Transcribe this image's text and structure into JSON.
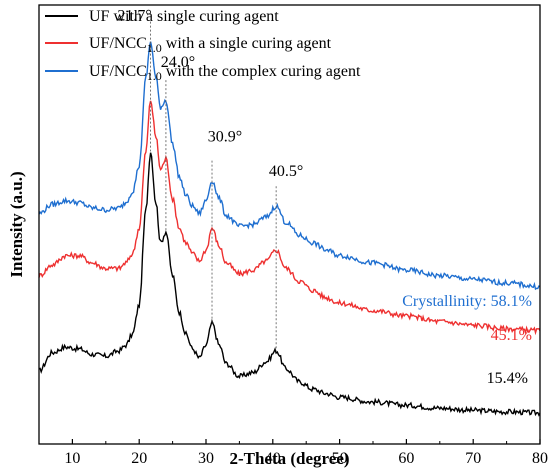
{
  "chart_data": {
    "type": "line",
    "xlabel": "2-Theta (degree)",
    "ylabel": "Intensity (a.u.)",
    "xlim": [
      5,
      80
    ],
    "xticks": [
      10,
      20,
      30,
      40,
      50,
      60,
      70,
      80
    ],
    "grid": false,
    "legend_position": "top-left",
    "series": [
      {
        "name_main": "UF with a single curing agent",
        "name_sub": "",
        "name_rest": "",
        "color": "#000000",
        "crystallinity": "15.4%",
        "x": [
          5,
          7,
          9,
          11,
          13,
          15,
          17,
          18,
          19,
          20,
          21,
          21.7,
          22.5,
          23.2,
          24.0,
          25,
          26,
          27,
          28,
          29,
          30,
          30.9,
          32,
          33,
          35,
          37,
          39,
          40.5,
          42,
          44,
          46,
          48,
          50,
          55,
          60,
          65,
          70,
          75,
          80
        ],
        "y": [
          12,
          17,
          18.5,
          18,
          16.5,
          16,
          17.5,
          19,
          22,
          30,
          56,
          72,
          58,
          47,
          50,
          38,
          28,
          22,
          18,
          15.5,
          19,
          25,
          19,
          14,
          10.5,
          11.5,
          14.5,
          17.5,
          12.5,
          9,
          7,
          5.8,
          4.8,
          3.5,
          2.6,
          1.8,
          1.2,
          0.8,
          0.5
        ]
      },
      {
        "name_main": "UF/NCC",
        "name_sub": "1.0",
        "name_rest": " with a single curing agent",
        "color": "#ee3030",
        "crystallinity": "45.1%",
        "x": [
          5,
          7,
          9,
          11,
          13,
          15,
          17,
          18,
          19,
          20,
          21,
          21.7,
          22.5,
          23.2,
          24.0,
          25,
          26,
          27,
          28,
          29,
          30,
          30.9,
          32,
          33,
          35,
          37,
          39,
          40.5,
          42,
          44,
          46,
          48,
          50,
          55,
          60,
          65,
          70,
          75,
          80
        ],
        "y": [
          38,
          41,
          43.5,
          43.5,
          41.5,
          40,
          40,
          41.5,
          44,
          51,
          72,
          86,
          76,
          67,
          70,
          59,
          51,
          47,
          44,
          42,
          45,
          51,
          46,
          41.5,
          38.5,
          39.5,
          42,
          45,
          40,
          36.5,
          34,
          32,
          30.5,
          28.5,
          27,
          25.5,
          24.5,
          23.5,
          23
        ]
      },
      {
        "name_main": "UF/NCC",
        "name_sub": "1.0",
        "name_rest": " with the complex curing agent",
        "color": "#1f6fd0",
        "crystallinity": "58.1%",
        "x": [
          5,
          7,
          9,
          11,
          13,
          15,
          17,
          18,
          19,
          20,
          21,
          21.7,
          22.5,
          23.2,
          24.0,
          25,
          26,
          27,
          28,
          29,
          30,
          30.9,
          32,
          33,
          35,
          37,
          39,
          40.5,
          42,
          44,
          46,
          48,
          50,
          55,
          60,
          65,
          70,
          75,
          80
        ],
        "y": [
          55,
          57.5,
          58.5,
          58,
          56.5,
          56,
          56.5,
          58,
          61,
          68,
          92,
          102,
          92,
          84,
          86,
          74,
          65,
          60,
          57,
          55,
          58.5,
          64,
          59,
          54.5,
          51.5,
          52,
          54,
          57,
          52.5,
          49,
          47,
          45,
          43.5,
          41.5,
          39.5,
          38,
          37,
          36,
          35
        ]
      }
    ],
    "peaks": [
      {
        "x": 21.7,
        "label": "21.7°"
      },
      {
        "x": 24.0,
        "label": "24.0°"
      },
      {
        "x": 30.9,
        "label": "30.9°"
      },
      {
        "x": 40.5,
        "label": "40.5°"
      }
    ],
    "crystallinity_prefix": "Crystallinity: "
  }
}
